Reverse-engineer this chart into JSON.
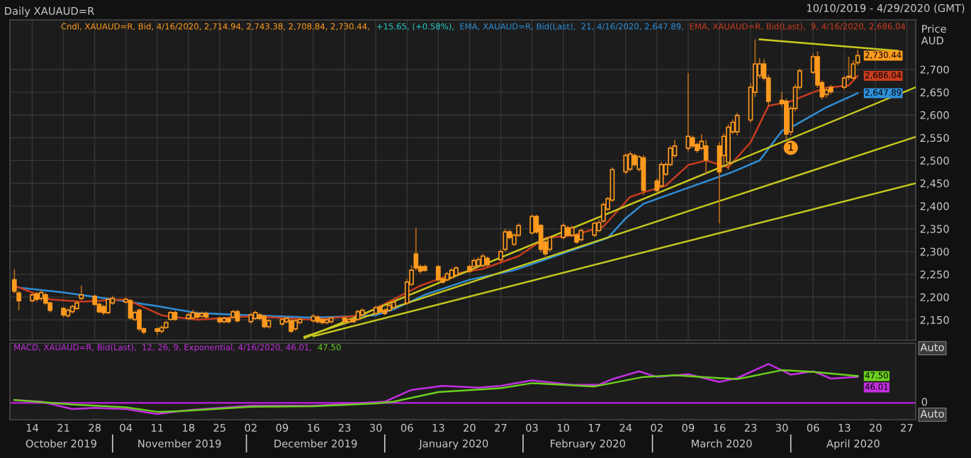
{
  "chart_data": [
    {
      "type": "candlestick",
      "title": "Daily XAUAUD=R",
      "subtitle": "10/10/2019 - 4/29/2020 (GMT)",
      "ylabel": "Price AUD",
      "legend_title": "Cndl, XAUAUD=R, Bid, 4/16/2020, 2,714.94, 2,743.38, 2,708.84, 2,730.44,",
      "x": [
        "2019-10-10",
        "2019-10-11",
        "2019-10-14",
        "2019-10-15",
        "2019-10-16",
        "2019-10-17",
        "2019-10-18",
        "2019-10-21",
        "2019-10-22",
        "2019-10-23",
        "2019-10-24",
        "2019-10-25",
        "2019-10-28",
        "2019-10-29",
        "2019-10-30",
        "2019-10-31",
        "2019-11-01",
        "2019-11-04",
        "2019-11-05",
        "2019-11-06",
        "2019-11-07",
        "2019-11-08",
        "2019-11-11",
        "2019-11-12",
        "2019-11-13",
        "2019-11-14",
        "2019-11-15",
        "2019-11-18",
        "2019-11-19",
        "2019-11-20",
        "2019-11-21",
        "2019-11-22",
        "2019-11-25",
        "2019-11-26",
        "2019-11-27",
        "2019-11-28",
        "2019-11-29",
        "2019-12-02",
        "2019-12-03",
        "2019-12-04",
        "2019-12-05",
        "2019-12-06",
        "2019-12-09",
        "2019-12-10",
        "2019-12-11",
        "2019-12-12",
        "2019-12-13",
        "2019-12-16",
        "2019-12-17",
        "2019-12-18",
        "2019-12-19",
        "2019-12-20",
        "2019-12-23",
        "2019-12-24",
        "2019-12-25",
        "2019-12-26",
        "2019-12-27",
        "2019-12-30",
        "2019-12-31",
        "2020-01-01",
        "2020-01-02",
        "2020-01-03",
        "2020-01-06",
        "2020-01-07",
        "2020-01-08",
        "2020-01-09",
        "2020-01-10",
        "2020-01-13",
        "2020-01-14",
        "2020-01-15",
        "2020-01-16",
        "2020-01-17",
        "2020-01-20",
        "2020-01-21",
        "2020-01-22",
        "2020-01-23",
        "2020-01-24",
        "2020-01-27",
        "2020-01-28",
        "2020-01-29",
        "2020-01-30",
        "2020-01-31",
        "2020-02-03",
        "2020-02-04",
        "2020-02-05",
        "2020-02-06",
        "2020-02-07",
        "2020-02-10",
        "2020-02-11",
        "2020-02-12",
        "2020-02-13",
        "2020-02-14",
        "2020-02-17",
        "2020-02-18",
        "2020-02-19",
        "2020-02-20",
        "2020-02-21",
        "2020-02-24",
        "2020-02-25",
        "2020-02-26",
        "2020-02-27",
        "2020-02-28",
        "2020-03-02",
        "2020-03-03",
        "2020-03-04",
        "2020-03-05",
        "2020-03-06",
        "2020-03-09",
        "2020-03-10",
        "2020-03-11",
        "2020-03-12",
        "2020-03-13",
        "2020-03-16",
        "2020-03-17",
        "2020-03-18",
        "2020-03-19",
        "2020-03-20",
        "2020-03-23",
        "2020-03-24",
        "2020-03-25",
        "2020-03-26",
        "2020-03-27",
        "2020-03-30",
        "2020-03-31",
        "2020-04-01",
        "2020-04-02",
        "2020-04-03",
        "2020-04-06",
        "2020-04-07",
        "2020-04-08",
        "2020-04-09",
        "2020-04-10",
        "2020-04-13",
        "2020-04-14",
        "2020-04-15",
        "2020-04-16"
      ],
      "ohlc": [
        [
          2238,
          2261,
          2208,
          2213
        ],
        [
          2209,
          2214,
          2171,
          2192
        ],
        [
          2192,
          2210,
          2188,
          2205
        ],
        [
          2207,
          2212,
          2190,
          2195
        ],
        [
          2197,
          2215,
          2192,
          2210
        ],
        [
          2205,
          2210,
          2183,
          2187
        ],
        [
          2187,
          2190,
          2166,
          2171
        ],
        [
          2175,
          2178,
          2156,
          2161
        ],
        [
          2159,
          2175,
          2155,
          2171
        ],
        [
          2168,
          2183,
          2164,
          2179
        ],
        [
          2175,
          2192,
          2172,
          2187
        ],
        [
          2197,
          2225,
          2193,
          2205
        ],
        [
          2202,
          2206,
          2180,
          2184
        ],
        [
          2184,
          2188,
          2164,
          2168
        ],
        [
          2179,
          2183,
          2160,
          2166
        ],
        [
          2166,
          2199,
          2162,
          2195
        ],
        [
          2187,
          2203,
          2183,
          2197
        ],
        [
          2189,
          2200,
          2186,
          2195
        ],
        [
          2192,
          2196,
          2150,
          2154
        ],
        [
          2151,
          2170,
          2147,
          2166
        ],
        [
          2171,
          2175,
          2125,
          2130
        ],
        [
          2130,
          2134,
          2118,
          2123
        ],
        [
          2130,
          2133,
          2117,
          2125
        ],
        [
          2125,
          2138,
          2120,
          2133
        ],
        [
          2133,
          2148,
          2130,
          2144
        ],
        [
          2151,
          2170,
          2148,
          2166
        ],
        [
          2166,
          2170,
          2148,
          2151
        ],
        [
          2153,
          2166,
          2150,
          2161
        ],
        [
          2154,
          2172,
          2151,
          2166
        ],
        [
          2164,
          2168,
          2152,
          2156
        ],
        [
          2158,
          2168,
          2154,
          2164
        ],
        [
          2164,
          2168,
          2152,
          2156
        ],
        [
          2153,
          2157,
          2142,
          2146
        ],
        [
          2146,
          2157,
          2142,
          2153
        ],
        [
          2153,
          2156,
          2142,
          2146
        ],
        [
          2156,
          2172,
          2152,
          2168
        ],
        [
          2168,
          2172,
          2144,
          2148
        ],
        [
          2146,
          2165,
          2142,
          2161
        ],
        [
          2153,
          2170,
          2150,
          2166
        ],
        [
          2161,
          2165,
          2149,
          2153
        ],
        [
          2158,
          2162,
          2131,
          2135
        ],
        [
          2135,
          2152,
          2131,
          2148
        ],
        [
          2141,
          2155,
          2137,
          2151
        ],
        [
          2146,
          2157,
          2142,
          2153
        ],
        [
          2148,
          2152,
          2121,
          2125
        ],
        [
          2130,
          2152,
          2126,
          2148
        ],
        [
          2144,
          2156,
          2140,
          2151
        ],
        [
          2148,
          2163,
          2144,
          2158
        ],
        [
          2156,
          2160,
          2142,
          2146
        ],
        [
          2151,
          2155,
          2140,
          2144
        ],
        [
          2144,
          2154,
          2140,
          2150
        ],
        [
          2146,
          2158,
          2142,
          2154
        ],
        [
          2154,
          2158,
          2142,
          2146
        ],
        [
          2146,
          2155,
          2143,
          2151
        ],
        [
          2152,
          2155,
          2143,
          2146
        ],
        [
          2151,
          2172,
          2148,
          2168
        ],
        [
          2161,
          2175,
          2158,
          2171
        ],
        [
          2164,
          2181,
          2160,
          2177
        ],
        [
          2179,
          2183,
          2165,
          2168
        ],
        [
          2171,
          2175,
          2160,
          2164
        ],
        [
          2171,
          2186,
          2168,
          2182
        ],
        [
          2177,
          2193,
          2174,
          2189
        ],
        [
          2187,
          2240,
          2183,
          2233
        ],
        [
          2228,
          2270,
          2224,
          2259
        ],
        [
          2295,
          2352,
          2258,
          2264
        ],
        [
          2267,
          2272,
          2252,
          2257
        ],
        [
          2267,
          2271,
          2255,
          2259
        ],
        [
          2267,
          2271,
          2234,
          2238
        ],
        [
          2240,
          2244,
          2229,
          2233
        ],
        [
          2238,
          2255,
          2235,
          2251
        ],
        [
          2243,
          2263,
          2240,
          2259
        ],
        [
          2248,
          2268,
          2245,
          2264
        ],
        [
          2267,
          2271,
          2253,
          2257
        ],
        [
          2267,
          2285,
          2263,
          2280
        ],
        [
          2269,
          2288,
          2266,
          2282
        ],
        [
          2269,
          2295,
          2266,
          2290
        ],
        [
          2285,
          2289,
          2267,
          2271
        ],
        [
          2282,
          2305,
          2278,
          2300
        ],
        [
          2305,
          2350,
          2300,
          2343
        ],
        [
          2343,
          2348,
          2327,
          2331
        ],
        [
          2316,
          2340,
          2312,
          2336
        ],
        [
          2336,
          2362,
          2332,
          2357
        ],
        [
          2341,
          2382,
          2337,
          2377
        ],
        [
          2377,
          2381,
          2339,
          2343
        ],
        [
          2357,
          2361,
          2298,
          2305
        ],
        [
          2321,
          2325,
          2290,
          2295
        ],
        [
          2305,
          2335,
          2300,
          2331
        ],
        [
          2331,
          2362,
          2327,
          2357
        ],
        [
          2352,
          2356,
          2332,
          2336
        ],
        [
          2336,
          2357,
          2332,
          2352
        ],
        [
          2336,
          2340,
          2317,
          2321
        ],
        [
          2326,
          2350,
          2322,
          2346
        ],
        [
          2336,
          2366,
          2332,
          2362
        ],
        [
          2346,
          2370,
          2342,
          2364
        ],
        [
          2367,
          2408,
          2363,
          2403
        ],
        [
          2393,
          2420,
          2389,
          2416
        ],
        [
          2413,
          2485,
          2409,
          2480
        ],
        [
          2475,
          2516,
          2470,
          2511
        ],
        [
          2481,
          2520,
          2476,
          2514
        ],
        [
          2511,
          2515,
          2486,
          2491
        ],
        [
          2481,
          2512,
          2476,
          2508
        ],
        [
          2506,
          2512,
          2424,
          2434
        ],
        [
          2455,
          2460,
          2429,
          2434
        ],
        [
          2444,
          2497,
          2440,
          2491
        ],
        [
          2470,
          2496,
          2466,
          2491
        ],
        [
          2491,
          2532,
          2487,
          2527
        ],
        [
          2511,
          2545,
          2506,
          2532
        ],
        [
          2527,
          2692,
          2520,
          2553
        ],
        [
          2550,
          2555,
          2527,
          2532
        ],
        [
          2535,
          2540,
          2517,
          2522
        ],
        [
          2527,
          2558,
          2522,
          2542
        ],
        [
          2532,
          2545,
          2470,
          2501
        ],
        [
          2532,
          2540,
          2362,
          2475
        ],
        [
          2511,
          2560,
          2490,
          2553
        ],
        [
          2496,
          2580,
          2480,
          2573
        ],
        [
          2563,
          2590,
          2558,
          2584
        ],
        [
          2563,
          2605,
          2555,
          2599
        ],
        [
          2589,
          2670,
          2583,
          2661
        ],
        [
          2650,
          2766,
          2640,
          2712
        ],
        [
          2687,
          2725,
          2680,
          2712
        ],
        [
          2712,
          2722,
          2676,
          2681
        ],
        [
          2681,
          2688,
          2620,
          2630
        ],
        [
          2632,
          2650,
          2618,
          2625
        ],
        [
          2630,
          2636,
          2547,
          2558
        ],
        [
          2563,
          2620,
          2555,
          2614
        ],
        [
          2614,
          2668,
          2608,
          2661
        ],
        [
          2661,
          2702,
          2655,
          2697
        ],
        [
          2694,
          2735,
          2690,
          2728
        ],
        [
          2728,
          2740,
          2660,
          2666
        ],
        [
          2671,
          2676,
          2634,
          2640
        ],
        [
          2645,
          2662,
          2638,
          2655
        ],
        [
          2661,
          2666,
          2646,
          2651
        ],
        [
          2661,
          2686,
          2656,
          2681
        ],
        [
          2683,
          2728,
          2676,
          2685
        ],
        [
          2681,
          2720,
          2676,
          2712
        ],
        [
          2714.94,
          2743.38,
          2708.84,
          2730.44
        ]
      ],
      "series": [
        {
          "type": "line",
          "name": "EMA, XAUAUD=R, Bid(Last),  21, 4/16/2020, 2,647.89,",
          "color": "#2f8fd8",
          "x": [
            "2019-10-10",
            "2019-10-21",
            "2019-11-01",
            "2019-11-11",
            "2019-11-20",
            "2019-12-02",
            "2019-12-16",
            "2019-12-30",
            "2020-01-03",
            "2020-01-10",
            "2020-01-20",
            "2020-01-30",
            "2020-02-10",
            "2020-02-20",
            "2020-02-24",
            "2020-02-28",
            "2020-03-09",
            "2020-03-19",
            "2020-03-25",
            "2020-03-30",
            "2020-04-02",
            "2020-04-09",
            "2020-04-16"
          ],
          "values": [
            2222,
            2210,
            2195,
            2180,
            2165,
            2160,
            2155,
            2160,
            2173,
            2205,
            2238,
            2259,
            2296,
            2330,
            2373,
            2405,
            2440,
            2475,
            2500,
            2565,
            2578,
            2617,
            2647.89
          ],
          "value_labels": [
            null,
            null,
            null,
            null,
            null,
            null,
            null,
            null,
            null,
            null,
            null,
            null,
            null,
            null,
            null,
            null,
            null,
            null,
            null,
            null,
            null,
            null,
            "2,647.89"
          ]
        },
        {
          "type": "line",
          "name": "EMA, XAUAUD=R, Bid(Last),  9, 4/16/2020, 2,686.04",
          "color": "#c83c1e",
          "x": [
            "2019-10-10",
            "2019-10-18",
            "2019-10-25",
            "2019-11-04",
            "2019-11-12",
            "2019-11-20",
            "2019-12-02",
            "2019-12-16",
            "2019-12-27",
            "2020-01-03",
            "2020-01-09",
            "2020-01-16",
            "2020-01-23",
            "2020-01-31",
            "2020-02-06",
            "2020-02-12",
            "2020-02-19",
            "2020-02-25",
            "2020-02-28",
            "2020-03-04",
            "2020-03-09",
            "2020-03-13",
            "2020-03-18",
            "2020-03-23",
            "2020-03-27",
            "2020-04-01",
            "2020-04-06",
            "2020-04-09",
            "2020-04-14",
            "2020-04-16"
          ],
          "values": [
            2225,
            2195,
            2190,
            2195,
            2160,
            2150,
            2158,
            2150,
            2160,
            2195,
            2225,
            2250,
            2262,
            2290,
            2330,
            2335,
            2355,
            2420,
            2430,
            2445,
            2490,
            2500,
            2485,
            2540,
            2620,
            2630,
            2650,
            2660,
            2665,
            2686.04
          ],
          "value_labels": [
            null,
            null,
            null,
            null,
            null,
            null,
            null,
            null,
            null,
            null,
            null,
            null,
            null,
            null,
            null,
            null,
            null,
            null,
            null,
            null,
            null,
            null,
            null,
            null,
            null,
            null,
            null,
            null,
            null,
            "2,686.04"
          ]
        },
        {
          "type": "line",
          "color": "#c8c81e",
          "x": [
            "2019-12-14",
            "2020-04-29"
          ],
          "values": [
            2110,
            2661
          ]
        },
        {
          "type": "line",
          "color": "#c8c81e",
          "x": [
            "2019-12-14",
            "2020-04-29"
          ],
          "values": [
            2113,
            2552
          ]
        },
        {
          "type": "line",
          "color": "#c8c81e",
          "x": [
            "2019-12-16",
            "2020-04-29"
          ],
          "values": [
            2114,
            2450
          ]
        },
        {
          "type": "line",
          "color": "#c8c81e",
          "x": [
            "2020-03-25",
            "2020-04-25"
          ],
          "values": [
            2766,
            2741
          ]
        }
      ],
      "annotations": [
        "+15.65, (+0.58%),",
        {
          "text": "1",
          "x": "2020-04-01",
          "y": 2528
        },
        {
          "text": "2,730.44",
          "x": "2020-04-16",
          "y": 2730.44
        }
      ],
      "xlim": [
        "2019-10-09",
        "2020-04-29"
      ],
      "ylim": [
        2105,
        2809
      ],
      "xticks": [
        {
          "value": "2019-10-14",
          "label": null
        },
        {
          "value": "2019-10-21",
          "label": null
        },
        {
          "value": "2019-10-28",
          "label": null
        },
        {
          "value": "2019-11-04",
          "label": null
        },
        {
          "value": "2019-11-11",
          "label": null
        },
        {
          "value": "2019-11-18",
          "label": null
        },
        {
          "value": "2019-11-25",
          "label": null
        },
        {
          "value": "2019-12-02",
          "label": null
        },
        {
          "value": "2019-12-09",
          "label": null
        },
        {
          "value": "2019-12-16",
          "label": null
        },
        {
          "value": "2019-12-23",
          "label": null
        },
        {
          "value": "2019-12-30",
          "label": null
        },
        {
          "value": "2020-01-06",
          "label": null
        },
        {
          "value": "2020-01-13",
          "label": null
        },
        {
          "value": "2020-01-20",
          "label": null
        },
        {
          "value": "2020-01-27",
          "label": null
        },
        {
          "value": "2020-02-03",
          "label": null
        },
        {
          "value": "2020-02-10",
          "label": null
        },
        {
          "value": "2020-02-17",
          "label": null
        },
        {
          "value": "2020-02-24",
          "label": null
        },
        {
          "value": "2020-03-02",
          "label": null
        },
        {
          "value": "2020-03-09",
          "label": null
        },
        {
          "value": "2020-03-16",
          "label": null
        },
        {
          "value": "2020-03-23",
          "label": null
        },
        {
          "value": "2020-03-30",
          "label": null
        },
        {
          "value": "2020-04-06",
          "label": null
        },
        {
          "value": "2020-04-13",
          "label": null
        },
        {
          "value": "2020-04-20",
          "label": null
        },
        {
          "value": "2020-04-27",
          "label": null
        }
      ],
      "yticks": [
        {
          "value": 2150,
          "label": "2,150"
        },
        {
          "value": 2200,
          "label": "2,200"
        },
        {
          "value": 2250,
          "label": "2,250"
        },
        {
          "value": 2300,
          "label": "2,300"
        },
        {
          "value": 2350,
          "label": "2,350"
        },
        {
          "value": 2400,
          "label": "2,400"
        },
        {
          "value": 2450,
          "label": "2,450"
        },
        {
          "value": 2500,
          "label": "2,500"
        },
        {
          "value": 2550,
          "label": "2,550"
        },
        {
          "value": 2600,
          "label": "2,600"
        },
        {
          "value": 2650,
          "label": "2,650"
        },
        {
          "value": 2700,
          "label": "2,700"
        }
      ],
      "tick_labels": "y",
      "grid": true,
      "legend": "top right"
    },
    {
      "type": "line",
      "series": [
        {
          "name": "MACD, XAUAUD=R, Bid(Last),  12, 26, 9, Exponential, 4/16/2020, 46.01,",
          "color": "#c22fe0",
          "x": [
            "2019-10-10",
            "2019-10-16",
            "2019-10-23",
            "2019-10-28",
            "2019-11-04",
            "2019-11-11",
            "2019-11-18",
            "2019-11-25",
            "2019-12-02",
            "2019-12-16",
            "2019-12-23",
            "2020-01-01",
            "2020-01-07",
            "2020-01-14",
            "2020-01-22",
            "2020-01-27",
            "2020-02-03",
            "2020-02-12",
            "2020-02-18",
            "2020-02-21",
            "2020-02-27",
            "2020-03-02",
            "2020-03-09",
            "2020-03-16",
            "2020-03-20",
            "2020-03-27",
            "2020-04-01",
            "2020-04-06",
            "2020-04-10",
            "2020-04-16"
          ],
          "values": [
            5,
            2,
            -11,
            -9,
            -11,
            -20,
            -13,
            -9,
            -5,
            -5,
            -2,
            2,
            23,
            30,
            27,
            30,
            40,
            32,
            32,
            42,
            56,
            46,
            51,
            37,
            44,
            69,
            50,
            56,
            43,
            46.01
          ],
          "value_labels": [
            null,
            null,
            null,
            null,
            null,
            null,
            null,
            null,
            null,
            null,
            null,
            null,
            null,
            null,
            null,
            null,
            null,
            null,
            null,
            null,
            null,
            null,
            null,
            null,
            null,
            null,
            null,
            null,
            null,
            "46.01"
          ]
        },
        {
          "name": "47.50",
          "color": "#6ccf1e",
          "x": [
            "2019-10-10",
            "2019-10-23",
            "2019-11-04",
            "2019-11-11",
            "2019-11-18",
            "2019-12-02",
            "2019-12-16",
            "2019-12-30",
            "2020-01-03",
            "2020-01-13",
            "2020-01-27",
            "2020-02-03",
            "2020-02-17",
            "2020-02-28",
            "2020-03-06",
            "2020-03-20",
            "2020-03-30",
            "2020-04-06",
            "2020-04-16"
          ],
          "values": [
            5,
            -3,
            -8,
            -16,
            -14,
            -7,
            -6,
            -1,
            2,
            19,
            26,
            35,
            29,
            46,
            49,
            42,
            58,
            55,
            47.5
          ],
          "value_labels": [
            null,
            null,
            null,
            null,
            null,
            null,
            null,
            null,
            null,
            null,
            null,
            null,
            null,
            null,
            null,
            null,
            null,
            null,
            "47.50"
          ]
        }
      ],
      "ref_lines": [
        {
          "axis": "y",
          "value": 0,
          "label": "0",
          "color": "#b01ed0"
        }
      ],
      "annotations": [
        "Auto",
        "Auto",
        "October 2019",
        "November 2019",
        "December 2019",
        "January 2020",
        "February 2020",
        "March 2020",
        "April 2020"
      ],
      "xlim": [
        "2019-10-09",
        "2020-04-29"
      ],
      "ylim": [
        -30,
        106
      ],
      "xticks": [
        {
          "value": "2019-10-14",
          "label": "14"
        },
        {
          "value": "2019-10-21",
          "label": "21"
        },
        {
          "value": "2019-10-28",
          "label": "28"
        },
        {
          "value": "2019-11-04",
          "label": "04"
        },
        {
          "value": "2019-11-11",
          "label": "11"
        },
        {
          "value": "2019-11-18",
          "label": "18"
        },
        {
          "value": "2019-11-25",
          "label": "25"
        },
        {
          "value": "2019-12-02",
          "label": "02"
        },
        {
          "value": "2019-12-09",
          "label": "09"
        },
        {
          "value": "2019-12-16",
          "label": "16"
        },
        {
          "value": "2019-12-23",
          "label": "23"
        },
        {
          "value": "2019-12-30",
          "label": "30"
        },
        {
          "value": "2020-01-06",
          "label": "06"
        },
        {
          "value": "2020-01-13",
          "label": "13"
        },
        {
          "value": "2020-01-20",
          "label": "20"
        },
        {
          "value": "2020-01-27",
          "label": "27"
        },
        {
          "value": "2020-02-03",
          "label": "03"
        },
        {
          "value": "2020-02-10",
          "label": "10"
        },
        {
          "value": "2020-02-17",
          "label": "17"
        },
        {
          "value": "2020-02-24",
          "label": "24"
        },
        {
          "value": "2020-03-02",
          "label": "02"
        },
        {
          "value": "2020-03-09",
          "label": "09"
        },
        {
          "value": "2020-03-16",
          "label": "16"
        },
        {
          "value": "2020-03-23",
          "label": "23"
        },
        {
          "value": "2020-03-30",
          "label": "30"
        },
        {
          "value": "2020-04-06",
          "label": "06"
        },
        {
          "value": "2020-04-13",
          "label": "13"
        },
        {
          "value": "2020-04-20",
          "label": "20"
        },
        {
          "value": "2020-04-27",
          "label": "27"
        }
      ],
      "legend": "top left"
    }
  ]
}
